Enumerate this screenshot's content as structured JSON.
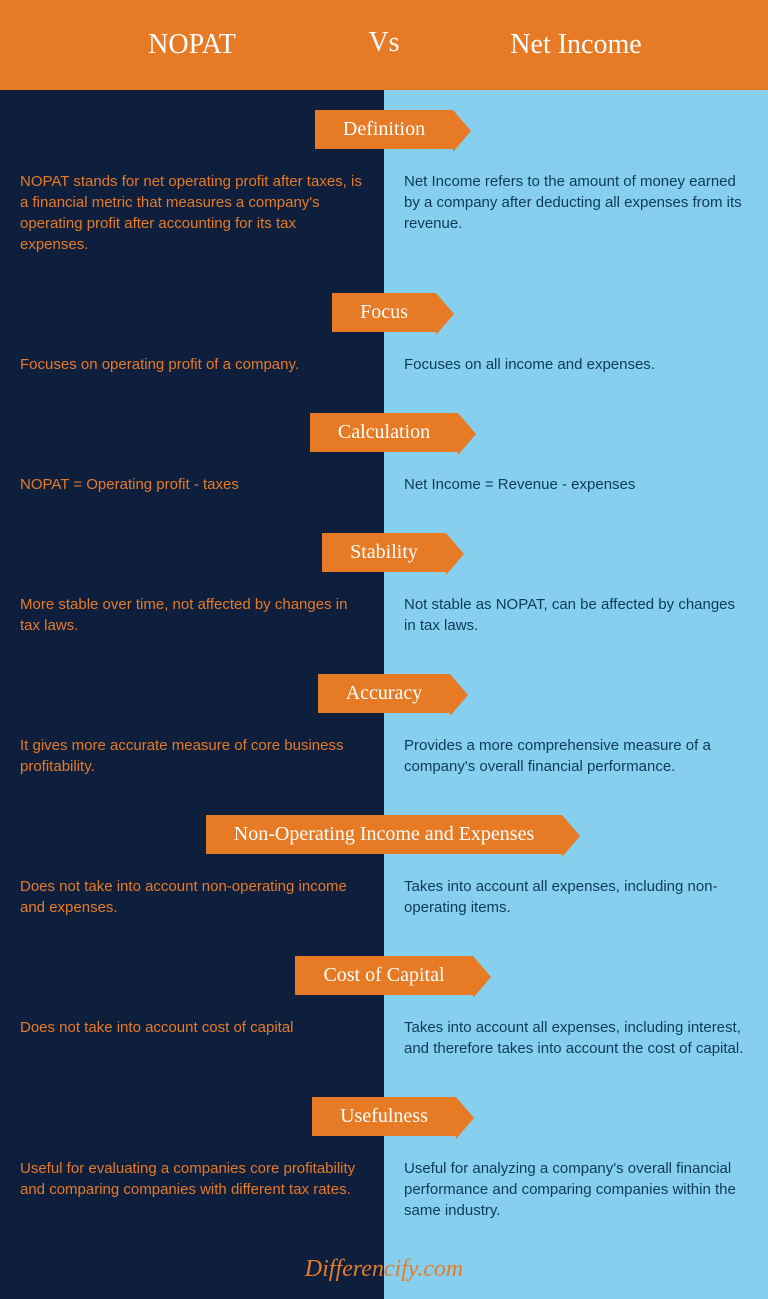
{
  "colors": {
    "orange": "#e77a25",
    "dark_navy": "#0d1f3c",
    "light_blue": "#87cfef",
    "dark_text": "#0d3a5c",
    "white": "#ffffff"
  },
  "header": {
    "left": "NOPAT",
    "mid": "Vs",
    "right": "Net Income"
  },
  "sections": [
    {
      "label": "Definition",
      "left": "NOPAT stands for net operating profit after taxes, is a financial metric that measures a company's operating profit after accounting for its tax expenses.",
      "right": "Net Income refers to the amount of money earned by a company after deducting all expenses from its revenue."
    },
    {
      "label": "Focus",
      "left": "Focuses on operating profit of a company.",
      "right": "Focuses on all income and expenses."
    },
    {
      "label": "Calculation",
      "left": "NOPAT = Operating profit - taxes",
      "right": "Net Income = Revenue - expenses"
    },
    {
      "label": "Stability",
      "left": "More stable over time, not affected by changes in tax laws.",
      "right": "Not stable as NOPAT, can be affected by changes in tax laws."
    },
    {
      "label": "Accuracy",
      "left": "It gives more accurate measure of core business profitability.",
      "right": "Provides a more comprehensive measure of a company's overall financial performance."
    },
    {
      "label": "Non-Operating Income and Expenses",
      "left": "Does not take into account non-operating income and expenses.",
      "right": "Takes into account all expenses, including non-operating items."
    },
    {
      "label": "Cost of Capital",
      "left": "Does not take into account cost of capital",
      "right": "Takes into account all expenses, including interest, and therefore takes into account the cost of capital."
    },
    {
      "label": "Usefulness",
      "left": "Useful for evaluating a companies core profitability and comparing companies with different tax rates.",
      "right": "Useful for analyzing a company's overall financial performance and comparing companies within the same industry."
    }
  ],
  "footer": "Differencify.com"
}
